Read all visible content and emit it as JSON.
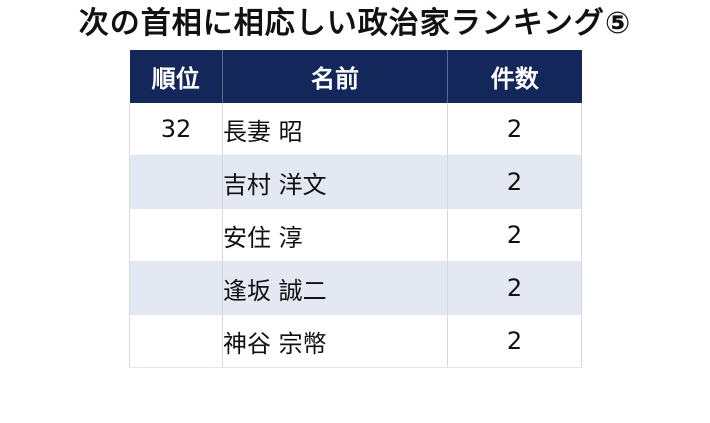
{
  "chart_data": {
    "type": "table",
    "title": "次の首相に相応しい政治家ランキング⑤",
    "columns": [
      "順位",
      "名前",
      "件数"
    ],
    "rows": [
      {
        "rank": "32",
        "name": "長妻 昭",
        "count": "2"
      },
      {
        "rank": "",
        "name": "吉村 洋文",
        "count": "2"
      },
      {
        "rank": "",
        "name": "安住 淳",
        "count": "2"
      },
      {
        "rank": "",
        "name": "逢坂 誠二",
        "count": "2"
      },
      {
        "rank": "",
        "name": "神谷 宗幣",
        "count": "2"
      }
    ],
    "header_color": "#14275a",
    "stripe_color": "#e4e8f2"
  }
}
